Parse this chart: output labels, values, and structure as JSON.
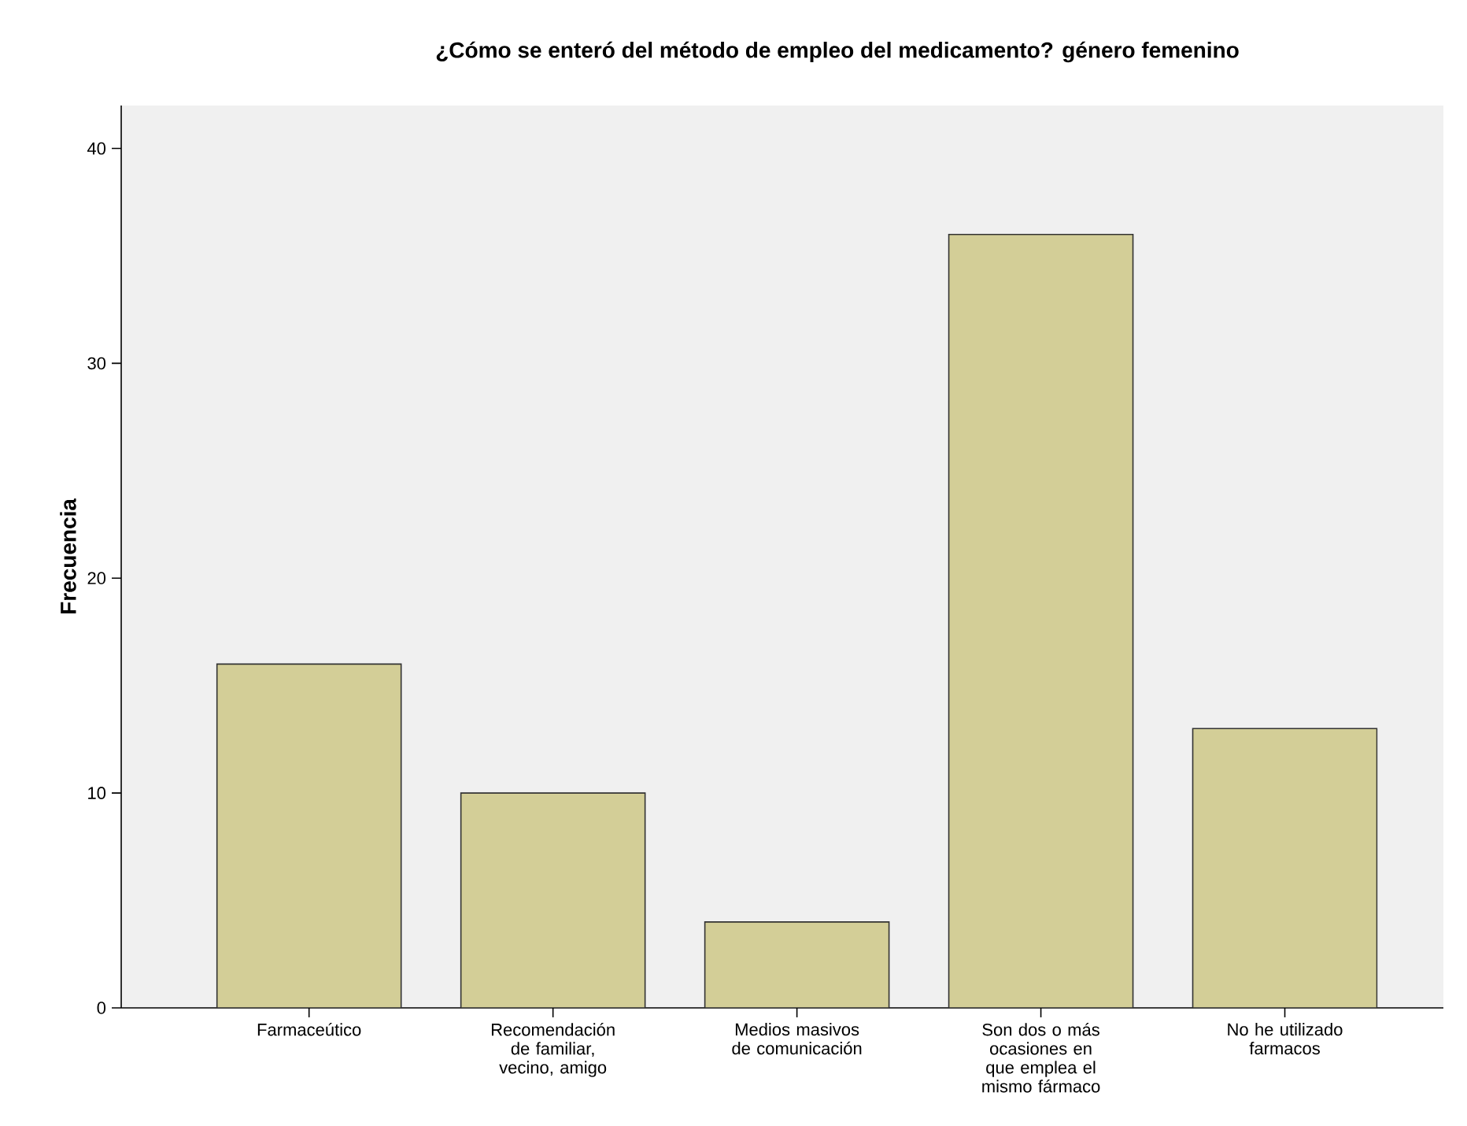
{
  "chart_data": {
    "type": "bar",
    "title": "¿Cómo se enteró del método de empleo del medicamento? género femenino",
    "ylabel": "Frecuencia",
    "categories": [
      "Farmaceútico",
      "Recomendación de familiar, vecino, amigo",
      "Medios masivos de comunicación",
      "Son dos o más ocasiones en que emplea el mismo fármaco",
      "No he utilizado farmacos"
    ],
    "values": [
      16,
      10,
      4,
      36,
      13
    ],
    "color": "#d3ce97",
    "ylim": [
      0,
      42
    ],
    "yticks": [
      0,
      10,
      20,
      30,
      40
    ]
  }
}
